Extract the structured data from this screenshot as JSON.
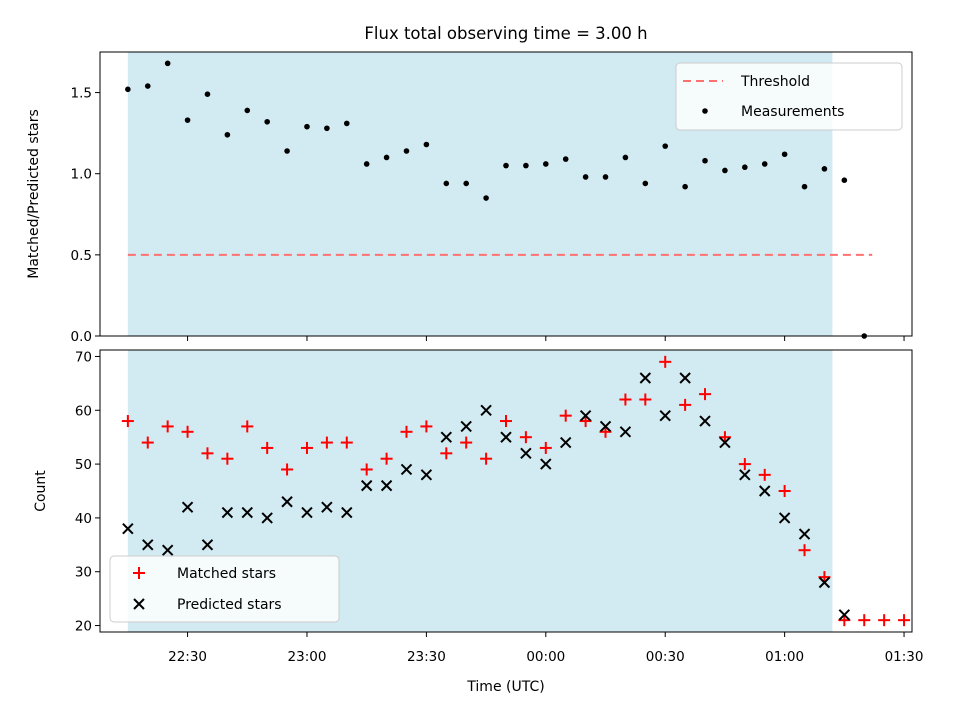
{
  "chart_data": [
    {
      "type": "scatter",
      "title": "Flux total observing time = 3.00 h",
      "ylabel": "Matched/Predicted stars",
      "xlabel": "",
      "x_range": [
        "22:08",
        "01:32"
      ],
      "ylim": [
        0,
        1.75
      ],
      "y_ticks": [
        "0.0",
        "0.5",
        "1.0",
        "1.5"
      ],
      "shaded_span": [
        "22:15",
        "01:12"
      ],
      "shade_color": "#add8e6",
      "grid": false,
      "legend_position": "top-right",
      "series": [
        {
          "name": "Threshold",
          "kind": "dashed-line",
          "color": "#ff7070",
          "x": [
            "22:15",
            "01:22"
          ],
          "y": [
            0.5,
            0.5
          ]
        },
        {
          "name": "Measurements",
          "kind": "dot",
          "color": "#000000",
          "x": [
            "22:15",
            "22:20",
            "22:25",
            "22:30",
            "22:35",
            "22:40",
            "22:45",
            "22:50",
            "22:55",
            "23:00",
            "23:05",
            "23:10",
            "23:15",
            "23:20",
            "23:25",
            "23:30",
            "23:35",
            "23:40",
            "23:45",
            "23:50",
            "23:55",
            "00:00",
            "00:05",
            "00:10",
            "00:15",
            "00:20",
            "00:25",
            "00:30",
            "00:35",
            "00:40",
            "00:45",
            "00:50",
            "00:55",
            "01:00",
            "01:05",
            "01:10",
            "01:15",
            "01:20"
          ],
          "y": [
            1.52,
            1.54,
            1.68,
            1.33,
            1.49,
            1.24,
            1.39,
            1.32,
            1.14,
            1.29,
            1.28,
            1.31,
            1.06,
            1.1,
            1.14,
            1.18,
            0.94,
            0.94,
            0.85,
            1.05,
            1.05,
            1.06,
            1.09,
            0.98,
            0.98,
            1.1,
            0.94,
            1.17,
            0.92,
            1.08,
            1.02,
            1.04,
            1.06,
            1.12,
            0.92,
            1.03,
            0.96,
            0.0
          ]
        }
      ]
    },
    {
      "type": "scatter",
      "title": "",
      "ylabel": "Count",
      "xlabel": "Time (UTC)",
      "x_range": [
        "22:08",
        "01:32"
      ],
      "x_ticks": [
        "22:30",
        "23:00",
        "23:30",
        "00:00",
        "00:30",
        "01:00",
        "01:30"
      ],
      "ylim": [
        18.8,
        71.2
      ],
      "y_ticks": [
        "20",
        "30",
        "40",
        "50",
        "60",
        "70"
      ],
      "shaded_span": [
        "22:15",
        "01:12"
      ],
      "shade_color": "#add8e6",
      "grid": false,
      "legend_position": "bottom-left",
      "series": [
        {
          "name": "Matched stars",
          "marker": "plus",
          "color": "#ff0000",
          "x": [
            "22:15",
            "22:20",
            "22:25",
            "22:30",
            "22:35",
            "22:40",
            "22:45",
            "22:50",
            "22:55",
            "23:00",
            "23:05",
            "23:10",
            "23:15",
            "23:20",
            "23:25",
            "23:30",
            "23:35",
            "23:40",
            "23:45",
            "23:50",
            "23:55",
            "00:00",
            "00:05",
            "00:10",
            "00:15",
            "00:20",
            "00:25",
            "00:30",
            "00:35",
            "00:40",
            "00:45",
            "00:50",
            "00:55",
            "01:00",
            "01:05",
            "01:10",
            "01:15",
            "01:20",
            "01:25",
            "01:30"
          ],
          "y": [
            58,
            54,
            57,
            56,
            52,
            51,
            57,
            53,
            49,
            53,
            54,
            54,
            49,
            51,
            56,
            57,
            52,
            54,
            51,
            58,
            55,
            53,
            59,
            58,
            56,
            62,
            62,
            69,
            61,
            63,
            55,
            50,
            48,
            45,
            34,
            29,
            21,
            21,
            21,
            21
          ]
        },
        {
          "name": "Predicted stars",
          "marker": "x",
          "color": "#000000",
          "x": [
            "22:15",
            "22:20",
            "22:25",
            "22:30",
            "22:35",
            "22:40",
            "22:45",
            "22:50",
            "22:55",
            "23:00",
            "23:05",
            "23:10",
            "23:15",
            "23:20",
            "23:25",
            "23:30",
            "23:35",
            "23:40",
            "23:45",
            "23:50",
            "23:55",
            "00:00",
            "00:05",
            "00:10",
            "00:15",
            "00:20",
            "00:25",
            "00:30",
            "00:35",
            "00:40",
            "00:45",
            "00:50",
            "00:55",
            "01:00",
            "01:05",
            "01:10",
            "01:15"
          ],
          "y": [
            38,
            35,
            34,
            42,
            35,
            41,
            41,
            40,
            43,
            41,
            42,
            41,
            46,
            46,
            49,
            48,
            55,
            57,
            60,
            55,
            52,
            50,
            54,
            59,
            57,
            56,
            66,
            59,
            66,
            58,
            54,
            48,
            45,
            40,
            37,
            28,
            22
          ]
        }
      ]
    }
  ]
}
